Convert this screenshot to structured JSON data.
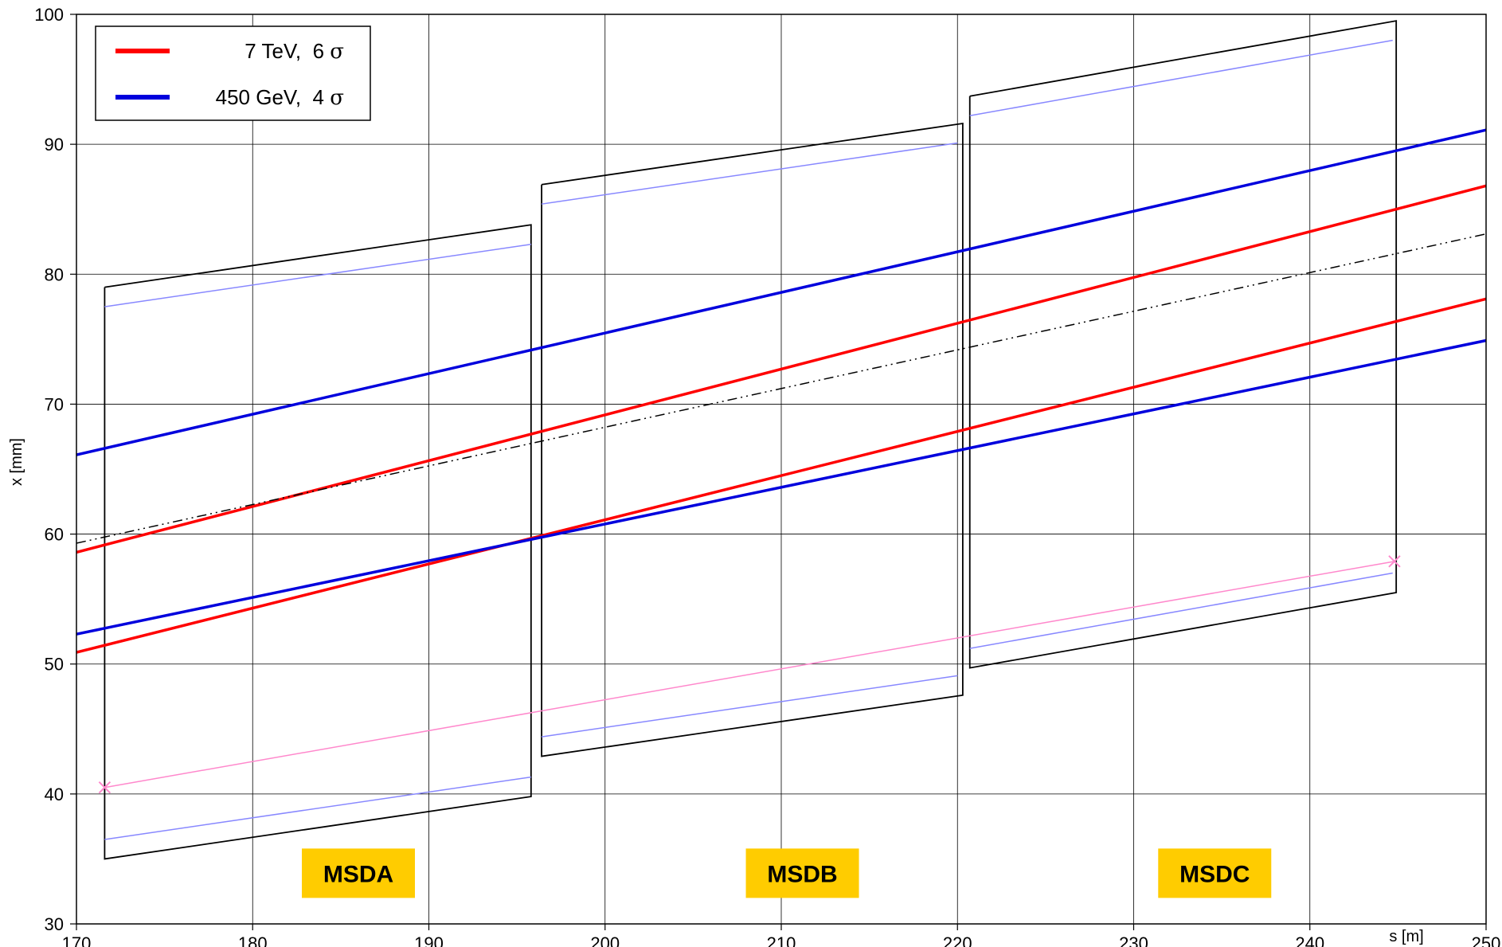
{
  "chart_data": {
    "type": "line",
    "xlabel": "s [m]",
    "ylabel": "x [mm]",
    "xlim": [
      170,
      250
    ],
    "ylim": [
      30,
      100
    ],
    "xticks": [
      "170",
      "180",
      "190",
      "200",
      "210",
      "220",
      "230",
      "240",
      "250"
    ],
    "yticks": [
      "30",
      "40",
      "50",
      "60",
      "70",
      "80",
      "90",
      "100"
    ],
    "grid": true,
    "legend": {
      "position": "top-left",
      "entries": [
        {
          "label_text": "7 TeV,  6 ",
          "symbol": "σ",
          "color": "#ff0000"
        },
        {
          "label_text": "450 GeV,  4 ",
          "symbol": "σ",
          "color": "#0000dd"
        }
      ]
    },
    "series": [
      {
        "color": "#ff0000",
        "width": 3.5,
        "style": "solid",
        "x": [
          170,
          250
        ],
        "y": [
          58.6,
          86.8
        ]
      },
      {
        "color": "#ff0000",
        "width": 3.5,
        "style": "solid",
        "x": [
          170,
          250
        ],
        "y": [
          50.9,
          78.1
        ]
      },
      {
        "color": "#0000dd",
        "width": 3.5,
        "style": "solid",
        "x": [
          170,
          250
        ],
        "y": [
          66.1,
          91.1
        ]
      },
      {
        "color": "#0000dd",
        "width": 3.5,
        "style": "solid",
        "x": [
          170,
          250
        ],
        "y": [
          52.3,
          74.9
        ]
      },
      {
        "color": "#000000",
        "width": 1.5,
        "style": "dashdotdot",
        "x": [
          170,
          250
        ],
        "y": [
          59.3,
          83.1
        ]
      },
      {
        "color": "#ff88cc",
        "width": 1.5,
        "style": "solid",
        "marker": "x",
        "x": [
          171.6,
          244.8
        ],
        "y": [
          40.5,
          57.9
        ]
      }
    ],
    "magnets": [
      {
        "label": "MSDA",
        "outline": {
          "x": [
            171.6,
            195.8,
            195.8,
            171.6,
            171.6
          ],
          "y": [
            79.0,
            83.8,
            39.8,
            35.0,
            79.0
          ]
        },
        "inner_top": {
          "x": [
            171.6,
            195.8
          ],
          "y": [
            77.5,
            82.3
          ]
        },
        "inner_bottom": {
          "x": [
            171.6,
            195.8
          ],
          "y": [
            36.5,
            41.3
          ]
        },
        "label_x": 186.0,
        "label_y": 33.9
      },
      {
        "label": "MSDB",
        "outline": {
          "x": [
            196.4,
            220.3,
            220.3,
            196.4,
            196.4
          ],
          "y": [
            86.9,
            91.6,
            47.6,
            42.9,
            86.9
          ]
        },
        "inner_top": {
          "x": [
            196.4,
            220.0
          ],
          "y": [
            85.4,
            90.1
          ]
        },
        "inner_bottom": {
          "x": [
            196.4,
            220.0
          ],
          "y": [
            44.4,
            49.1
          ]
        },
        "label_x": 211.2,
        "label_y": 33.9
      },
      {
        "label": "MSDC",
        "outline": {
          "x": [
            220.7,
            244.9,
            244.9,
            220.7,
            220.7
          ],
          "y": [
            93.7,
            99.5,
            55.5,
            49.7,
            93.7
          ]
        },
        "inner_top": {
          "x": [
            220.7,
            244.7
          ],
          "y": [
            92.2,
            98.0
          ]
        },
        "inner_bottom": {
          "x": [
            220.7,
            244.7
          ],
          "y": [
            51.2,
            57.0
          ]
        },
        "label_x": 234.6,
        "label_y": 33.9
      }
    ],
    "label_box_color": "#ffcc00",
    "outline_color": "#000000",
    "inner_color": "#8888ff"
  }
}
